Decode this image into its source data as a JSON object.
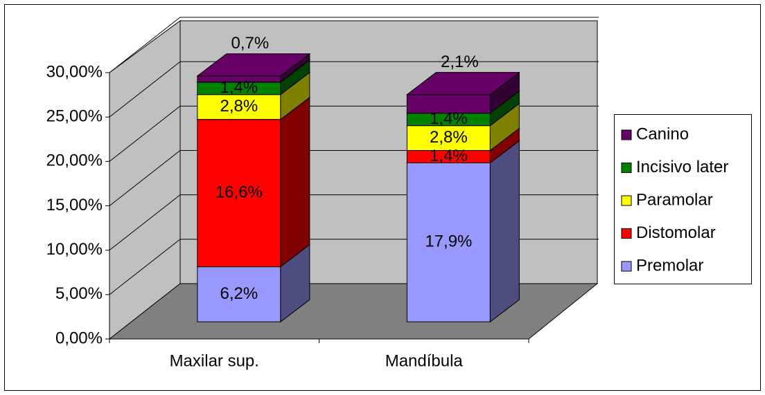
{
  "chart_data": {
    "type": "bar3d_stacked",
    "categories": [
      "Maxilar sup.",
      "Mandíbula"
    ],
    "series": [
      {
        "name": "Premolar",
        "color": "#9999ff",
        "values": [
          6.2,
          17.9
        ],
        "value_labels": [
          "6,2%",
          "17,9%"
        ]
      },
      {
        "name": "Distomolar",
        "color": "#ff0000",
        "values": [
          16.6,
          1.4
        ],
        "value_labels": [
          "16,6%",
          "1,4%"
        ]
      },
      {
        "name": "Paramolar",
        "color": "#ffff00",
        "values": [
          2.8,
          2.8
        ],
        "value_labels": [
          "2,8%",
          "2,8%"
        ]
      },
      {
        "name": "Incisivo later",
        "color": "#008000",
        "values": [
          1.4,
          1.4
        ],
        "value_labels": [
          "1,4%",
          "1,4%"
        ]
      },
      {
        "name": "Canino",
        "color": "#660066",
        "values": [
          0.7,
          2.1
        ],
        "value_labels": [
          "0,7%",
          "2,1%"
        ]
      }
    ],
    "ylim": [
      0,
      30
    ],
    "yticks": [
      {
        "value": 0,
        "label": "0,00%"
      },
      {
        "value": 5,
        "label": "5,00%"
      },
      {
        "value": 10,
        "label": "10,00%"
      },
      {
        "value": 15,
        "label": "15,00%"
      },
      {
        "value": 20,
        "label": "20,00%"
      },
      {
        "value": 25,
        "label": "25,00%"
      },
      {
        "value": 30,
        "label": "30,00%"
      }
    ],
    "grid": true,
    "legend": "right"
  }
}
